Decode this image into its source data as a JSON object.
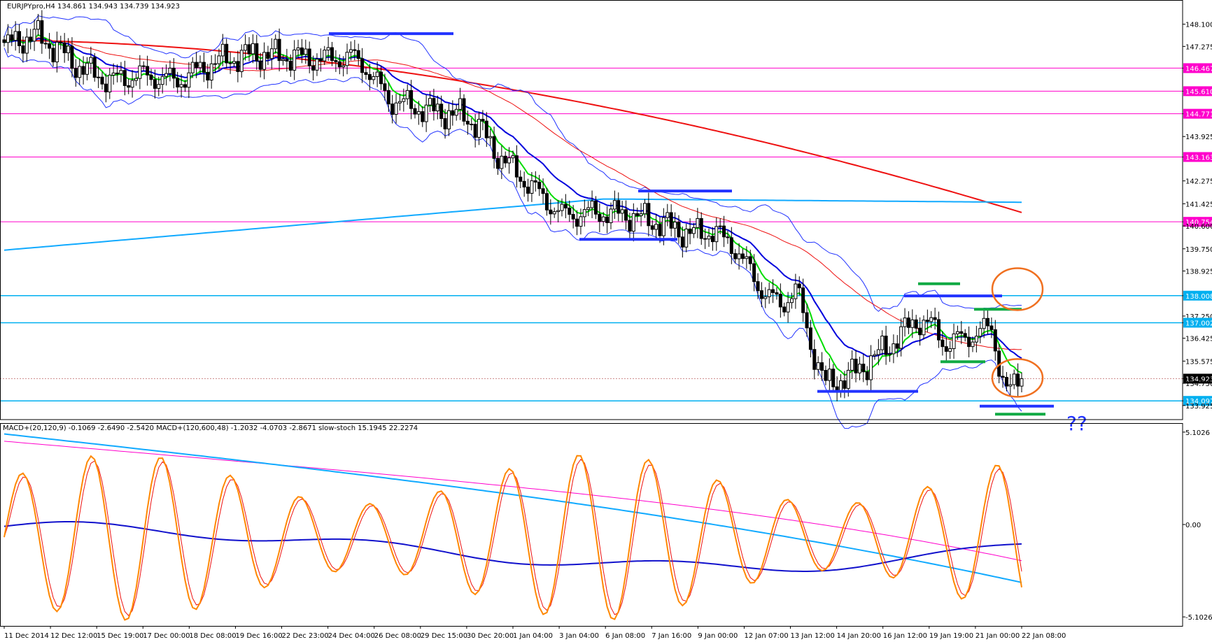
{
  "header": {
    "main_title": "EURJPYpro,H4  134.861 134.943 134.739 134.923",
    "indicator_title": "MACD+(20,120,9) -0.1069 -2.6490 -2.5420  MACD+(120,600,48) -1.2032 -4.0703 -2.8671  slow-stoch 15.1945 22.2274"
  },
  "annotation_text": "??",
  "chart_data": [
    {
      "type": "candlestick",
      "symbol": "EURJPYpro",
      "timeframe": "H4",
      "ylim": [
        133.4,
        149.0
      ],
      "y_ticks": [
        "148.100",
        "147.275",
        "146.467",
        "145.610",
        "144.771",
        "143.925",
        "143.163",
        "142.275",
        "141.425",
        "140.754",
        "140.600",
        "139.750",
        "138.925",
        "138.008",
        "137.250",
        "137.002",
        "136.425",
        "135.575",
        "134.923",
        "134.750",
        "134.097",
        "133.925"
      ],
      "tick_values": [
        148.1,
        147.275,
        146.467,
        145.61,
        144.771,
        143.925,
        143.163,
        142.275,
        141.425,
        140.754,
        140.6,
        139.75,
        138.925,
        138.008,
        137.25,
        137.002,
        136.425,
        135.575,
        134.923,
        134.75,
        134.097,
        133.925
      ],
      "highlight_levels": [
        {
          "label": "146.467",
          "value": 146.467,
          "color": "#ff00cc"
        },
        {
          "label": "145.610",
          "value": 145.61,
          "color": "#ff00cc"
        },
        {
          "label": "144.771",
          "value": 144.771,
          "color": "#ff00cc"
        },
        {
          "label": "143.163",
          "value": 143.163,
          "color": "#ff00cc"
        },
        {
          "label": "140.754",
          "value": 140.754,
          "color": "#ff00cc"
        },
        {
          "label": "138.008",
          "value": 138.008,
          "color": "#00b0f0"
        },
        {
          "label": "137.002",
          "value": 137.002,
          "color": "#00b0f0"
        },
        {
          "label": "134.923",
          "value": 134.923,
          "color": "#000000"
        },
        {
          "label": "134.097",
          "value": 134.097,
          "color": "#00b0f0"
        }
      ],
      "x_labels": [
        "11 Dec 2014",
        "12 Dec 12:00",
        "15 Dec 19:00",
        "17 Dec 00:00",
        "18 Dec 08:00",
        "19 Dec 16:00",
        "22 Dec 23:00",
        "24 Dec 04:00",
        "26 Dec 08:00",
        "29 Dec 15:00",
        "30 Dec 20:00",
        "1 Jan 04:00",
        "3 Jan 04:00",
        "6 Jan 08:00",
        "7 Jan 16:00",
        "9 Jan 00:00",
        "12 Jan 07:00",
        "13 Jan 12:00",
        "14 Jan 20:00",
        "16 Jan 12:00",
        "19 Jan 19:00",
        "21 Jan 00:00",
        "22 Jan 08:00"
      ],
      "close_anchors": [
        [
          0,
          147.3
        ],
        [
          8,
          147.7
        ],
        [
          14,
          147.2
        ],
        [
          20,
          146.5
        ],
        [
          28,
          146.0
        ],
        [
          36,
          146.2
        ],
        [
          46,
          146.0
        ],
        [
          56,
          146.7
        ],
        [
          66,
          147.0
        ],
        [
          76,
          146.9
        ],
        [
          86,
          146.8
        ],
        [
          92,
          146.9
        ],
        [
          96,
          146.5
        ],
        [
          102,
          145.3
        ],
        [
          112,
          144.9
        ],
        [
          122,
          144.7
        ],
        [
          126,
          144.3
        ],
        [
          130,
          143.4
        ],
        [
          138,
          142.3
        ],
        [
          148,
          141.0
        ],
        [
          158,
          141.1
        ],
        [
          166,
          141.0
        ],
        [
          174,
          140.7
        ],
        [
          182,
          140.3
        ],
        [
          188,
          140.4
        ],
        [
          194,
          139.8
        ],
        [
          200,
          138.4
        ],
        [
          206,
          137.6
        ],
        [
          210,
          138.3
        ],
        [
          212,
          137.3
        ],
        [
          214,
          136.2
        ],
        [
          218,
          134.7
        ],
        [
          224,
          135.0
        ],
        [
          230,
          135.6
        ],
        [
          236,
          136.3
        ],
        [
          242,
          137.1
        ],
        [
          246,
          136.9
        ],
        [
          250,
          136.2
        ],
        [
          256,
          136.5
        ],
        [
          262,
          136.8
        ],
        [
          264,
          135.5
        ],
        [
          266,
          134.4
        ],
        [
          270,
          134.923
        ]
      ],
      "candle_count": 271,
      "indicators": {
        "ema_green": "#00dd00",
        "ema_blue": "#0000dd",
        "ma_red": "#ee1111",
        "ma_cyan": "#11aaff",
        "bollinger": "#2233ff"
      }
    },
    {
      "type": "line",
      "name": "oscillator",
      "ylim": [
        -5.6,
        5.6
      ],
      "y_ticks": [
        "5.1026",
        "0.00",
        "-5.1026"
      ],
      "tick_values": [
        5.1026,
        0.0,
        -5.1026
      ],
      "series_colors": {
        "stoch_main": "#ff8800",
        "stoch_signal": "#ee1111",
        "macd_fast": "#1111cc",
        "macd_slow": "#11aaff",
        "macd_signal_slow": "#ff00cc"
      }
    }
  ]
}
